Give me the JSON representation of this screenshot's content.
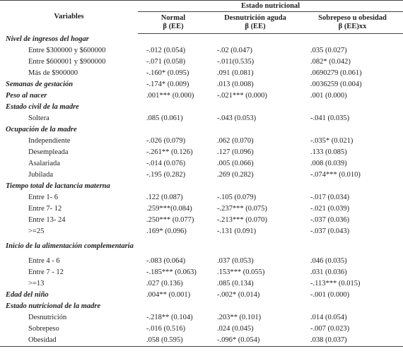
{
  "header": {
    "variables": "Variables",
    "group": "Estado nutricional",
    "columns": [
      [
        "Normal",
        "β (EE)"
      ],
      [
        "Desnutrición aguda",
        "β (EE)"
      ],
      [
        "Sobrepeso u obesidad",
        "β (EE)xx"
      ]
    ]
  },
  "sections": [
    {
      "title": "Nivel de ingresos del hogar",
      "rows": [
        {
          "label": "Entre $300000 y $600000",
          "cells": [
            "-.012 (0.054)",
            "-.02 (0.047)",
            ".035 (0.027)"
          ]
        },
        {
          "label": "Entre $600001 y $900000",
          "cells": [
            "-.071 (0.058)",
            "-.011(0.535)",
            ".082* (0.042)"
          ]
        },
        {
          "label": "Más de $900000",
          "cells": [
            "-.160* (0.095)",
            ".091 (0.081)",
            ".0690279 (0.061)"
          ]
        }
      ]
    },
    {
      "title": "Semanas de gestación",
      "cells": [
        "-.174* (0.009)",
        ".013 (0.008)",
        ".0036259 (0.004)"
      ]
    },
    {
      "title": "Peso al nacer",
      "cells": [
        ".001*** (0.000)",
        "-.021*** (0.000)",
        ".001 (0.000)"
      ]
    },
    {
      "title": "Estado civil de la madre",
      "rows": [
        {
          "label": "Soltera",
          "cells": [
            ".085 (0.061)",
            "-.043 (0.053)",
            "-.041 (0.035)"
          ]
        }
      ]
    },
    {
      "title": "Ocupación de la madre",
      "rows": [
        {
          "label": "Independiente",
          "cells": [
            "-.026 (0.079)",
            ".062 (0.070)",
            "-.035* (0.021)"
          ]
        },
        {
          "label": "Desempleada",
          "cells": [
            "-.261** (0.126)",
            ".127 (0.096)",
            ".133 (0.085)"
          ]
        },
        {
          "label": "Asalariada",
          "cells": [
            "-.014 (0.076)",
            ".005 (0.066)",
            ".008 (0.039)"
          ]
        },
        {
          "label": "Jubilada",
          "cells": [
            "-.195 (0.282)",
            ".269 (0.282)",
            "-.074*** (0.010)"
          ]
        }
      ]
    },
    {
      "title": "Tiempo total de lactancia materna",
      "rows": [
        {
          "label": "Entre 1- 6",
          "cells": [
            ".122 (0.087)",
            "-.105 (0.079)",
            "-.017 (0.034)"
          ]
        },
        {
          "label": "Entre 7- 12",
          "cells": [
            ".259***(0.084)",
            "-.237*** (0.075)",
            "-.021 (0.039)"
          ]
        },
        {
          "label": "Entre 13- 24",
          "cells": [
            ".250*** (0.077)",
            "-.213*** (0.070)",
            "-.037 (0.036)"
          ]
        },
        {
          "label": ">=25",
          "cells": [
            ".169* (0.096)",
            "-.131 (0.091)",
            "-.037 (0.043)"
          ]
        }
      ]
    },
    {
      "title": "Inicio de la alimentación complementaria",
      "rows": [
        {
          "label": "Entre 4 - 6",
          "cells": [
            "-.083 (0.064)",
            ".037 (0.053)",
            ".046 (0.035)"
          ]
        },
        {
          "label": "Entre 7 - 12",
          "cells": [
            "-.185*** (0.063)",
            ".153*** (0.055)",
            ".031 (0.036)"
          ]
        },
        {
          "label": ">=13",
          "cells": [
            ".027 (0.136)",
            ".085 (0.134)",
            "-.113*** (0.015)"
          ]
        }
      ]
    },
    {
      "title": "Edad del niño",
      "cells": [
        ".004** (0.001)",
        "-.002* (0.014)",
        "-.001 (0.000)"
      ]
    },
    {
      "title": "Estado nutricional de la madre",
      "rows": [
        {
          "label": "Desnutrición",
          "cells": [
            "-.218** (0.104)",
            ".203** (0.101)",
            ".014 (0.054)"
          ]
        },
        {
          "label": "Sobrepeso",
          "cells": [
            "-.016 (0.516)",
            ".024 (0.045)",
            "-.007 (0.023)"
          ]
        },
        {
          "label": "Obesidad",
          "cells": [
            ".058 (0.595)",
            "-.096* (0.054)",
            ".038 (0.037)"
          ]
        }
      ]
    }
  ]
}
